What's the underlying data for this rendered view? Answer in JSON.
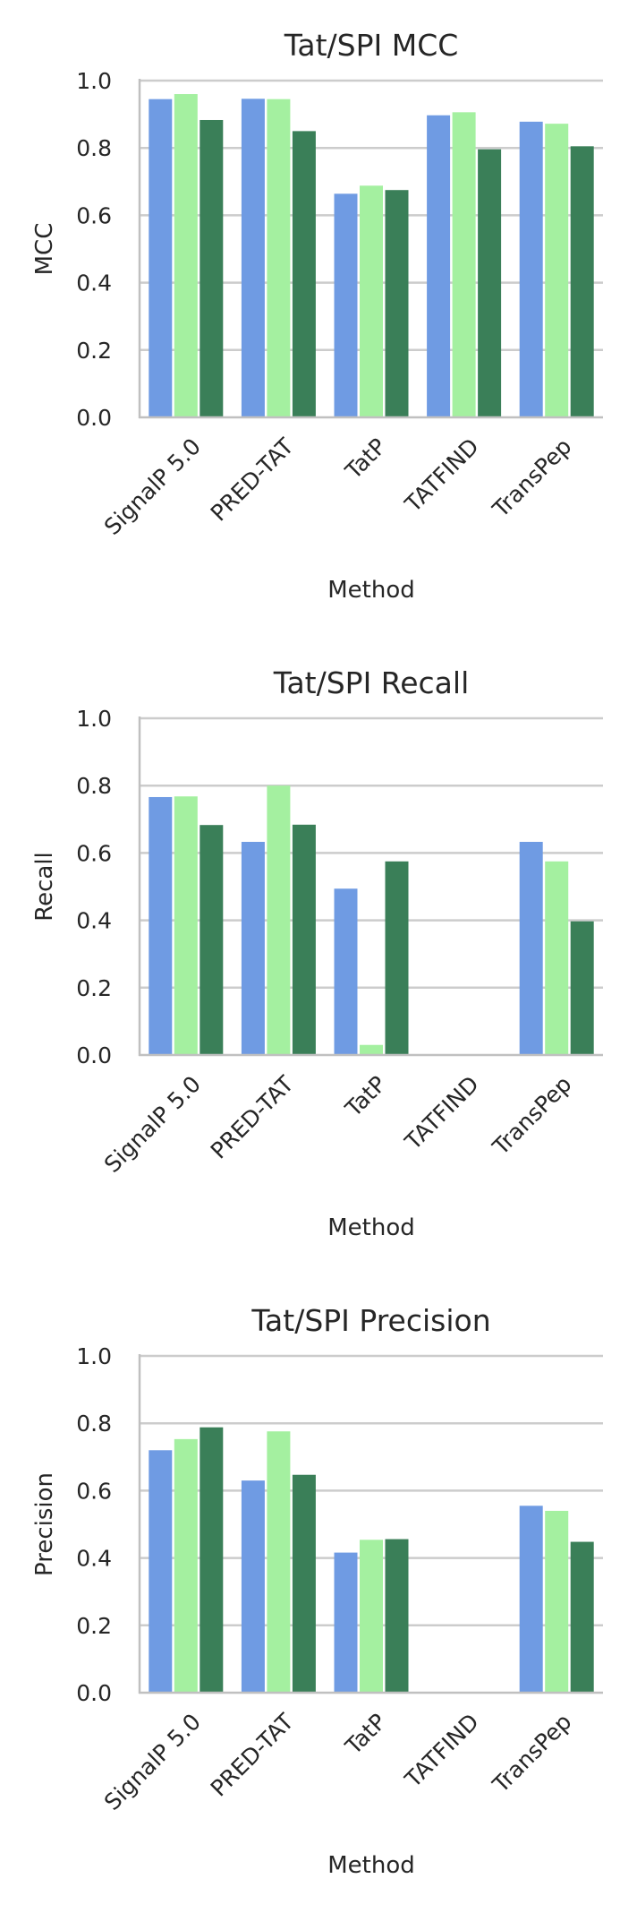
{
  "colors": {
    "series": [
      "#6f9be3",
      "#a4f0a0",
      "#3a7f58"
    ],
    "grid": "#cccccc",
    "text": "#262626"
  },
  "chart_data": [
    {
      "type": "bar",
      "title": "Tat/SPI MCC",
      "xlabel": "Method",
      "ylabel": "MCC",
      "ylim": [
        0,
        1.0
      ],
      "yticks": [
        "0.0",
        "0.2",
        "0.4",
        "0.6",
        "0.8",
        "1.0"
      ],
      "grid": "horizontal",
      "categories": [
        "SignalP 5.0",
        "PRED-TAT",
        "TatP",
        "TATFIND",
        "TransPep"
      ],
      "series": [
        {
          "values": [
            0.945,
            0.946,
            0.664,
            0.897,
            0.878
          ]
        },
        {
          "values": [
            0.96,
            0.945,
            0.688,
            0.906,
            0.872
          ]
        },
        {
          "values": [
            0.883,
            0.85,
            0.675,
            0.796,
            0.805
          ]
        }
      ]
    },
    {
      "type": "bar",
      "title": "Tat/SPI Recall",
      "xlabel": "Method",
      "ylabel": "Recall",
      "ylim": [
        0,
        1.0
      ],
      "yticks": [
        "0.0",
        "0.2",
        "0.4",
        "0.6",
        "0.8",
        "1.0"
      ],
      "grid": "horizontal",
      "categories": [
        "SignalP 5.0",
        "PRED-TAT",
        "TatP",
        "TATFIND",
        "TransPep"
      ],
      "series": [
        {
          "values": [
            0.766,
            0.633,
            0.494,
            0.0,
            0.633
          ]
        },
        {
          "values": [
            0.768,
            0.8,
            0.03,
            0.0,
            0.575
          ]
        },
        {
          "values": [
            0.683,
            0.684,
            0.575,
            0.0,
            0.397
          ]
        }
      ]
    },
    {
      "type": "bar",
      "title": "Tat/SPI Precision",
      "xlabel": "Method",
      "ylabel": "Precision",
      "ylim": [
        0,
        1.0
      ],
      "yticks": [
        "0.0",
        "0.2",
        "0.4",
        "0.6",
        "0.8",
        "1.0"
      ],
      "grid": "horizontal",
      "categories": [
        "SignalP 5.0",
        "PRED-TAT",
        "TatP",
        "TATFIND",
        "TransPep"
      ],
      "series": [
        {
          "values": [
            0.72,
            0.63,
            0.416,
            0.0,
            0.555
          ]
        },
        {
          "values": [
            0.753,
            0.776,
            0.454,
            0.0,
            0.54
          ]
        },
        {
          "values": [
            0.788,
            0.647,
            0.456,
            0.0,
            0.448
          ]
        }
      ]
    }
  ]
}
